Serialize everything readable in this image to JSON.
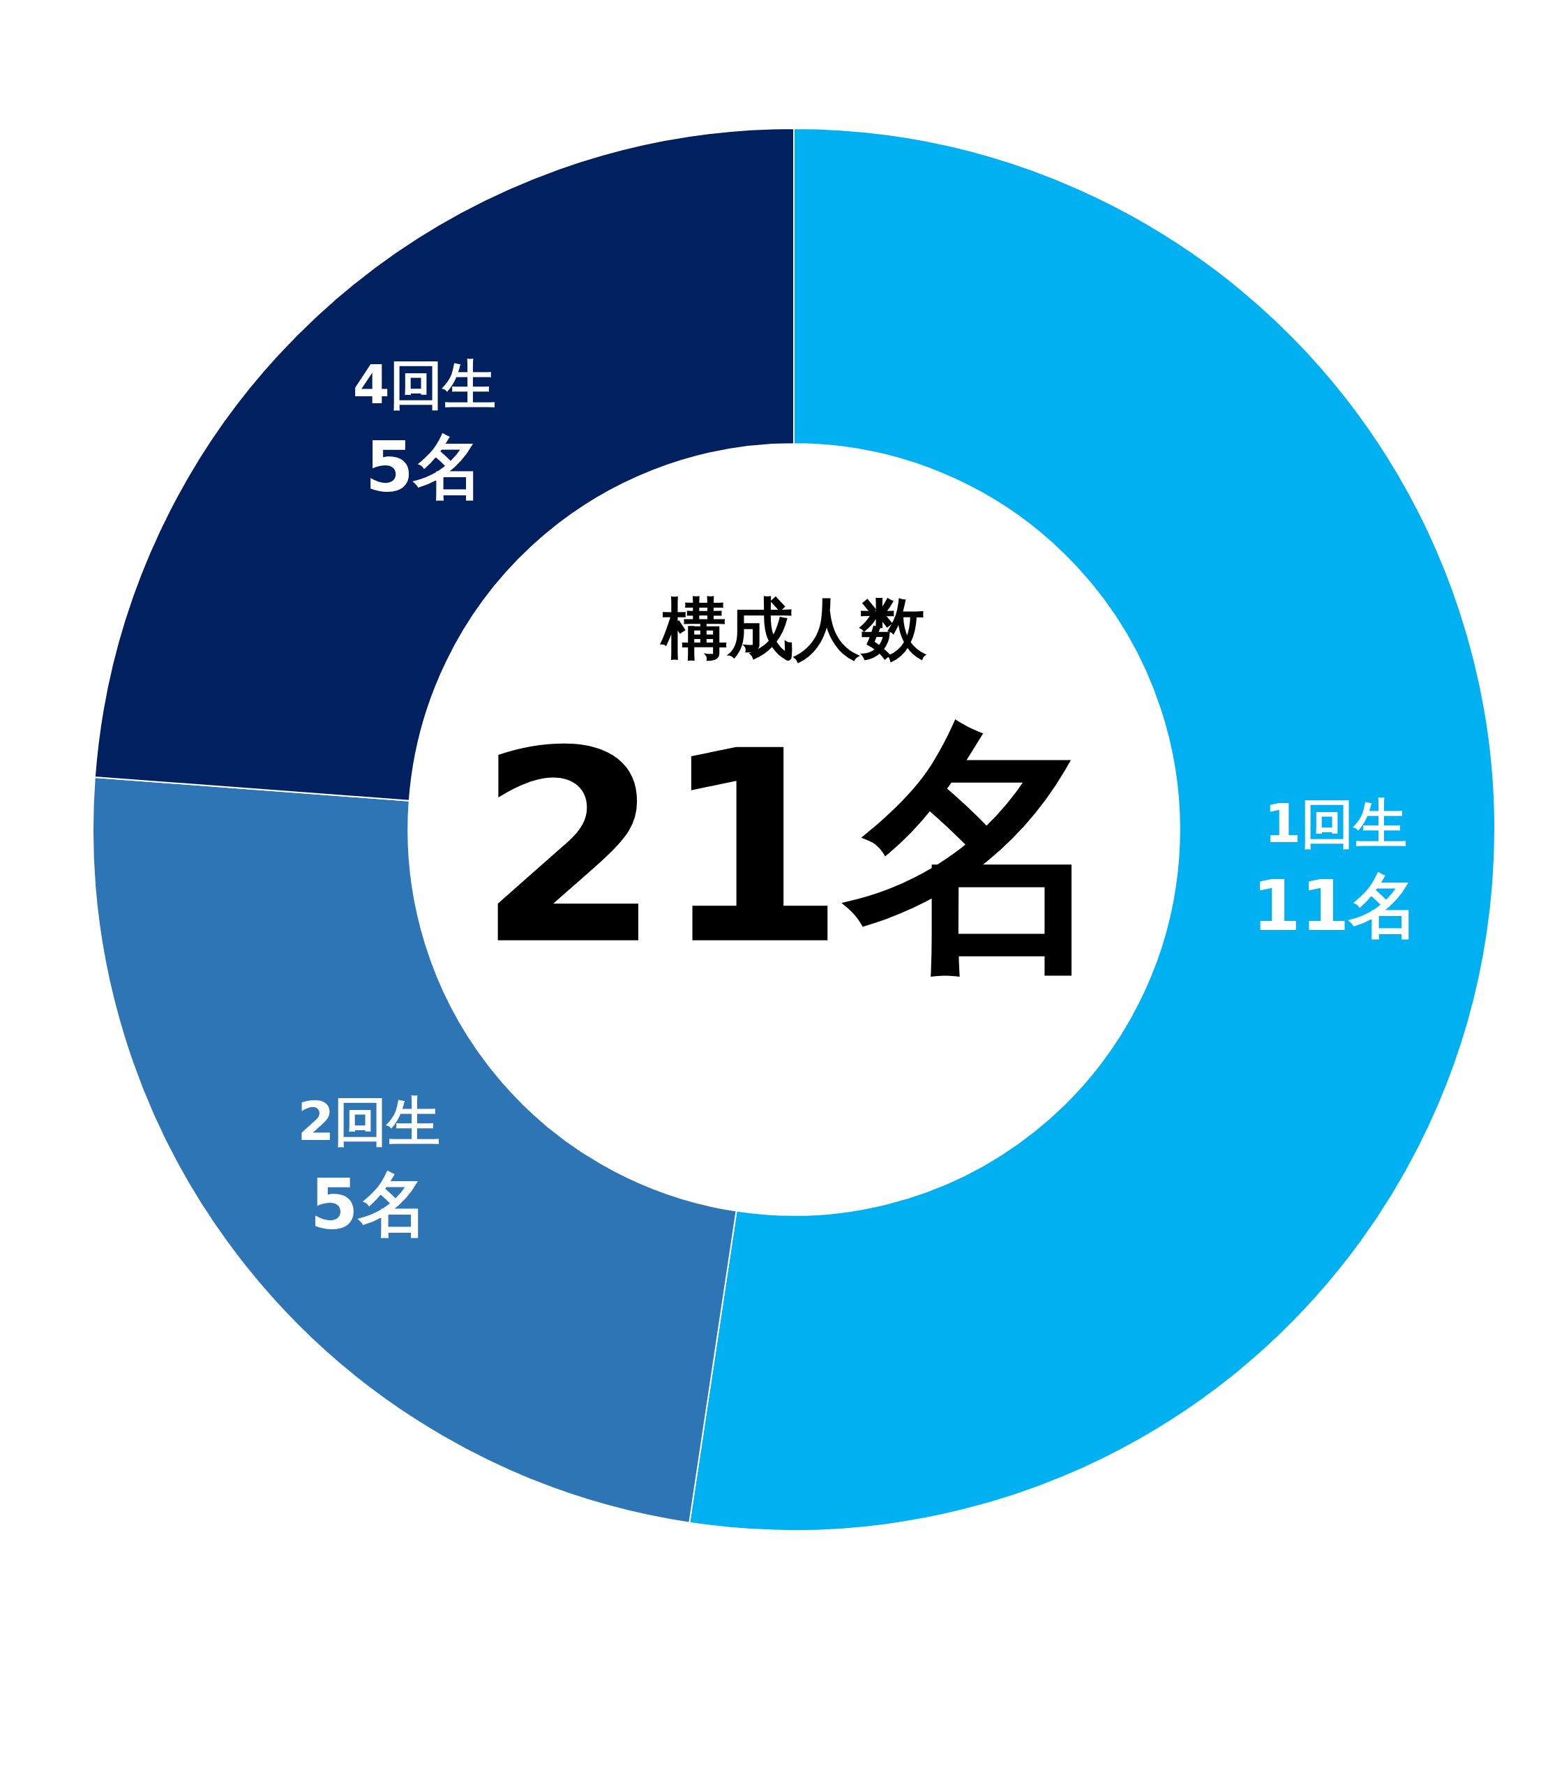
{
  "chart_data": {
    "type": "donut",
    "title": "構成人数",
    "annotations": [
      "21名"
    ],
    "categories": [
      "1回生",
      "2回生",
      "4回生"
    ],
    "values": [
      11,
      5,
      5
    ],
    "value_labels": [
      "11名",
      "5名",
      "5名"
    ],
    "colors": [
      "#00b0f0",
      "#2e75b6",
      "#002060"
    ],
    "legend": false
  }
}
